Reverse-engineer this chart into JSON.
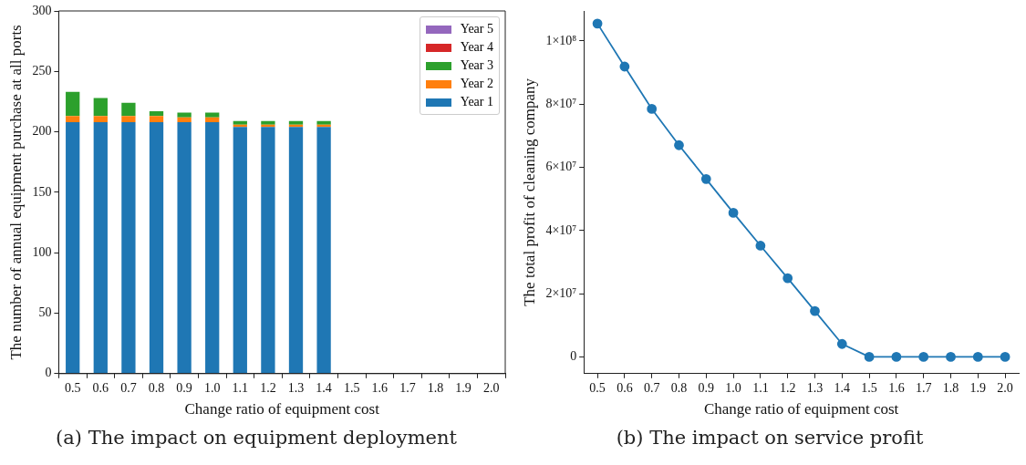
{
  "chart_data": [
    {
      "type": "bar",
      "stacked": true,
      "legend": "top right",
      "xlabel": "Change ratio of equipment cost",
      "ylabel": "The number of annual equipment purchase at all ports",
      "annotations": [
        "(a) The impact on equipment deployment"
      ],
      "categories": [
        "0.5",
        "0.6",
        "0.7",
        "0.8",
        "0.9",
        "1.0",
        "1.1",
        "1.2",
        "1.3",
        "1.4",
        "1.5",
        "1.6",
        "1.7",
        "1.8",
        "1.9",
        "2.0"
      ],
      "ylim": [
        0,
        300
      ],
      "yticks": [
        0,
        50,
        100,
        150,
        200,
        250,
        300
      ],
      "series": [
        {
          "name": "Year 1",
          "color": "#1f77b4",
          "values": [
            208,
            208,
            208,
            208,
            208,
            208,
            204,
            204,
            204,
            204,
            0,
            0,
            0,
            0,
            0,
            0
          ]
        },
        {
          "name": "Year 2",
          "color": "#ff7f0e",
          "values": [
            5,
            5,
            5,
            5,
            4,
            4,
            2,
            2,
            2,
            2,
            0,
            0,
            0,
            0,
            0,
            0
          ]
        },
        {
          "name": "Year 3",
          "color": "#2ca02c",
          "values": [
            20,
            15,
            11,
            4,
            4,
            4,
            3,
            3,
            3,
            3,
            0,
            0,
            0,
            0,
            0,
            0
          ]
        },
        {
          "name": "Year 4",
          "color": "#d62728",
          "values": [
            0,
            0,
            0,
            0,
            0,
            0,
            0,
            0,
            0,
            0,
            0,
            0,
            0,
            0,
            0,
            0
          ]
        },
        {
          "name": "Year 5",
          "color": "#9467bd",
          "values": [
            0,
            0,
            0,
            0,
            0,
            0,
            0,
            0,
            0,
            0,
            0,
            0,
            0,
            0,
            0,
            0
          ]
        }
      ]
    },
    {
      "type": "line",
      "marker": "circle",
      "xlabel": "Change ratio of equipment cost",
      "ylabel": "The total profit of cleaning company",
      "annotations": [
        "(b) The impact on service profit"
      ],
      "categories": [
        "0.5",
        "0.6",
        "0.7",
        "0.8",
        "0.9",
        "1.0",
        "1.1",
        "1.2",
        "1.3",
        "1.4",
        "1.5",
        "1.6",
        "1.7",
        "1.8",
        "1.9",
        "2.0"
      ],
      "ylim": [
        -5300000,
        109500000
      ],
      "yticks": [
        0,
        {
          "value": 20000000,
          "label": "2×10⁷"
        },
        {
          "value": 40000000,
          "label": "4×10⁷"
        },
        {
          "value": 60000000,
          "label": "6×10⁷"
        },
        {
          "value": 80000000,
          "label": "8×10⁷"
        },
        {
          "value": 100000000,
          "label": "1×10⁸"
        }
      ],
      "color": "#1f77b4",
      "values": [
        105500000,
        91900000,
        78500000,
        67000000,
        56300000,
        45600000,
        35200000,
        24900000,
        14500000,
        4100000,
        0,
        0,
        0,
        0,
        0,
        0
      ]
    }
  ]
}
